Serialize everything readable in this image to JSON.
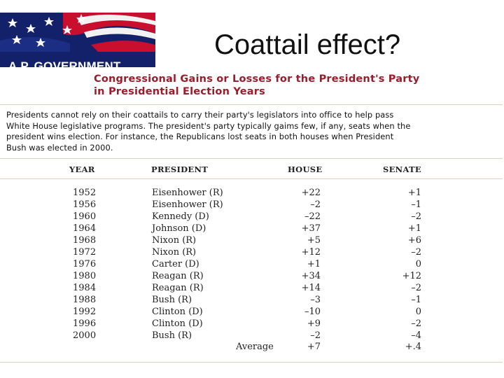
{
  "logo": {
    "text": "A.P. GOVERNMENT"
  },
  "slide": {
    "title": "Coattail effect?"
  },
  "figure": {
    "title_line1": "Congressional Gains or Losses for the President's Party",
    "title_line2": "in Presidential Election Years",
    "intro_lines": [
      "Presidents cannot rely on their coattails to carry their party's legislators into office to help pass",
      "White House legislative programs. The president's party typically gaims few, if any, seats when the",
      "president wins election. For instance, the Republicans lost seats in both houses when President",
      "Bush was elected in 2000."
    ]
  },
  "colors": {
    "title_red": "#9b1c2a",
    "rule": "#d8d4bd",
    "logo_blue": "#13216a"
  },
  "table": {
    "headers": {
      "year": "YEAR",
      "president": "PRESIDENT",
      "house": "HOUSE",
      "senate": "SENATE"
    },
    "rows": [
      {
        "year": "1952",
        "president": "Eisenhower (R)",
        "house": "+22",
        "senate": "+1"
      },
      {
        "year": "1956",
        "president": "Eisenhower (R)",
        "house": "–2",
        "senate": "–1"
      },
      {
        "year": "1960",
        "president": "Kennedy (D)",
        "house": "–22",
        "senate": "–2"
      },
      {
        "year": "1964",
        "president": "Johnson (D)",
        "house": "+37",
        "senate": "+1"
      },
      {
        "year": "1968",
        "president": "Nixon (R)",
        "house": "+5",
        "senate": "+6"
      },
      {
        "year": "1972",
        "president": "Nixon (R)",
        "house": "+12",
        "senate": "–2"
      },
      {
        "year": "1976",
        "president": "Carter (D)",
        "house": "+1",
        "senate": "0"
      },
      {
        "year": "1980",
        "president": "Reagan (R)",
        "house": "+34",
        "senate": "+12"
      },
      {
        "year": "1984",
        "president": "Reagan (R)",
        "house": "+14",
        "senate": "–2"
      },
      {
        "year": "1988",
        "president": "Bush (R)",
        "house": "–3",
        "senate": "–1"
      },
      {
        "year": "1992",
        "president": "Clinton (D)",
        "house": "–10",
        "senate": "0"
      },
      {
        "year": "1996",
        "president": "Clinton (D)",
        "house": "+9",
        "senate": "–2"
      },
      {
        "year": "2000",
        "president": "Bush (R)",
        "house": "–2",
        "senate": "–4"
      }
    ],
    "average": {
      "label": "Average",
      "house": "+7",
      "senate": "+.4"
    }
  }
}
